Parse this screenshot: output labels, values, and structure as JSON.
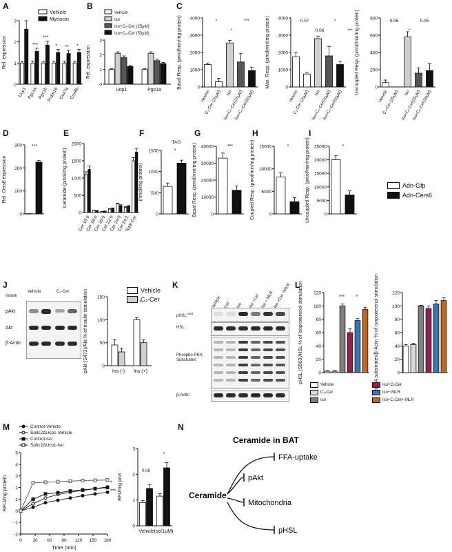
{
  "panels": {
    "A": {
      "label": "A"
    },
    "B": {
      "label": "B"
    },
    "C": {
      "label": "C"
    },
    "D": {
      "label": "D"
    },
    "E": {
      "label": "E"
    },
    "F": {
      "label": "F"
    },
    "G": {
      "label": "G"
    },
    "H": {
      "label": "H"
    },
    "I": {
      "label": "I"
    },
    "J": {
      "label": "J"
    },
    "K": {
      "label": "K"
    },
    "L": {
      "label": "L"
    },
    "M": {
      "label": "M"
    },
    "N": {
      "label": "N"
    }
  },
  "legend_GI": {
    "item1": "Adn-Gfp",
    "item2": "Adn-Cers6"
  },
  "panel_F_tag": "TAG",
  "panel_J_blot": {
    "insulin": "Insulin",
    "vehicle": "Vehicle",
    "c2cer": "C₂-Cer",
    "pakt": "pAkt",
    "akt": "Akt",
    "actin": "β-Actin",
    "minus": "-",
    "plus": "+"
  },
  "panel_K_blot": {
    "lanes": [
      "Vehicle",
      "Cer",
      "Iso",
      "Iso +Cer",
      "Iso + MLR",
      "Iso +Cer +MLR"
    ],
    "phsl": "pHSL",
    "phsl_sup": "S563",
    "hsl": "HSL",
    "pka1": "Phospho-PKA",
    "pka2": "Substrates",
    "actin": "β-Actin"
  },
  "panel_L_legend": {
    "vehicle": "Vehicle",
    "c2cer": "C₂-Cer",
    "iso": "Iso",
    "iso_c2cer": "Iso+C₂Cer",
    "iso_mlr": "Iso+ MLR",
    "iso_c2cer_mlr": "Iso+C₂Cer+ MLR"
  },
  "panel_N": {
    "title": "Ceramide in BAT",
    "center": "Ceramide",
    "targets": [
      "FFA-uptake",
      "pAkt",
      "Mitochondria",
      "pHSL"
    ]
  },
  "colors": {
    "black": "#111111",
    "grey": "#9a9a9a",
    "lightgrey": "#cfcfcf",
    "darkgrey": "#555555",
    "vehicle_L": "#ffffff",
    "c2cer_L": "#d8d8d8",
    "iso_L": "#7f7f7f",
    "iso_c2cer_L": "#8b2252",
    "iso_mlr_L": "#3d74a8",
    "iso_c2cer_mlr_L": "#c0661e"
  },
  "chart_data": [
    {
      "id": "A",
      "type": "bar",
      "ylabel": "Rel. expression",
      "ylim": [
        0,
        3
      ],
      "yticks": [
        "0",
        "1",
        "2",
        "3"
      ],
      "categories": [
        "Ucp1",
        "Pgc1a",
        "Pgc1b",
        "Prdm16",
        "Cox7a",
        "Cox8b"
      ],
      "series": [
        {
          "name": "Vehicle",
          "values": [
            1,
            1,
            1,
            1,
            1,
            1
          ],
          "err": [
            0.08,
            0.08,
            0.08,
            0.08,
            0.08,
            0.08
          ]
        },
        {
          "name": "Myriocin",
          "values": [
            2.6,
            1.55,
            1.85,
            1.5,
            1.45,
            1.5
          ],
          "err": [
            0.4,
            0.15,
            0.18,
            0.15,
            0.15,
            0.15
          ]
        }
      ],
      "stars": [
        "",
        "***",
        "***",
        "*",
        "**",
        "*"
      ]
    },
    {
      "id": "B",
      "type": "bar",
      "ylabel": "Rel. expression",
      "ylim": [
        0,
        3
      ],
      "yticks": [
        "0",
        "1",
        "2",
        "3"
      ],
      "categories": [
        "Ucp1",
        "Pgc1a"
      ],
      "series": [
        {
          "name": "Vehicle",
          "values": [
            1,
            1
          ],
          "err": [
            0.05,
            0.05
          ]
        },
        {
          "name": "Iso",
          "values": [
            2.1,
            2.1
          ],
          "err": [
            0.1,
            0.1
          ]
        },
        {
          "name": "Iso+C₂-Cer (25μM)",
          "values": [
            1.8,
            1.6
          ],
          "err": [
            0.12,
            0.1
          ]
        },
        {
          "name": "Iso+C₂-Cer (50μM)",
          "values": [
            1.2,
            1.4
          ],
          "err": [
            0.08,
            0.08
          ]
        }
      ]
    },
    {
      "id": "C1",
      "type": "bar",
      "ylabel": "Basal Resp. (pmol/min/mg protein)",
      "ylim": [
        0,
        4000
      ],
      "yticks": [
        "0",
        "1000",
        "2000",
        "3000",
        "4000"
      ],
      "categories": [
        "Vehicle",
        "C₂-Cer (25μM)",
        "Iso",
        "Iso+C₂-Cer(25μM)",
        "Iso+C₂-Cer(50μM)"
      ],
      "values": [
        1300,
        300,
        2550,
        1450,
        950
      ],
      "err": [
        80,
        200,
        150,
        500,
        200
      ],
      "stars": [
        "*",
        "*",
        "***"
      ]
    },
    {
      "id": "C2",
      "type": "bar",
      "ylabel": "Max. Resp. (pmol/min/mg protein)",
      "ylim": [
        0,
        4000
      ],
      "yticks": [
        "0",
        "1000",
        "2000",
        "3000",
        "4000"
      ],
      "categories": [
        "Vehicle",
        "C₂-Cer (25μM)",
        "Iso",
        "Iso+C₂-Cer(25μM)",
        "Iso+C₂-Cer(50μM)"
      ],
      "values": [
        1750,
        750,
        2800,
        1800,
        1300
      ],
      "err": [
        250,
        100,
        150,
        550,
        200
      ],
      "labels": [
        "0.07",
        "0.06",
        "*",
        "***"
      ]
    },
    {
      "id": "C3",
      "type": "bar",
      "ylabel": "Uncoupled Resp. (pmol/min/mg protein)",
      "ylim": [
        0,
        800
      ],
      "yticks": [
        "0",
        "200",
        "400",
        "600",
        "800"
      ],
      "categories": [
        "Vehicle",
        "C₂-Cer (25μM)",
        "Iso",
        "Iso+C₂-Cer(25μM)",
        "Iso+C₂-Cer(50μM)"
      ],
      "values": [
        50,
        0,
        580,
        160,
        190
      ],
      "err": [
        30,
        0,
        60,
        60,
        80
      ],
      "labels": [
        "0.06",
        "*",
        "0.06"
      ]
    },
    {
      "id": "D",
      "type": "bar",
      "ylabel": "Rel. Cers6 expression",
      "ylim": [
        0,
        300
      ],
      "yticks": [
        "0",
        "100",
        "200",
        "300"
      ],
      "values": [
        1,
        225
      ],
      "err": [
        0.1,
        8
      ],
      "stars": [
        "***"
      ]
    },
    {
      "id": "E",
      "type": "bar",
      "ylabel": "Ceramide (pmol/mg protein)",
      "ylim": [
        0,
        2000
      ],
      "yticks": [
        "0",
        "500",
        "1000",
        "1500",
        "2000"
      ],
      "categories": [
        "Cer 16:0",
        "Cer 18:0",
        "Cer 20:0",
        "Cer 22:0",
        "Cer 24:0",
        "Cer 24:1",
        "Total Cer"
      ],
      "series": [
        {
          "name": "Adn-Gfp",
          "values": [
            1100,
            60,
            30,
            100,
            250,
            150,
            1500
          ],
          "err": [
            80,
            10,
            5,
            15,
            20,
            20,
            90
          ]
        },
        {
          "name": "Adn-Cers6",
          "values": [
            1250,
            50,
            40,
            120,
            200,
            180,
            1750
          ],
          "err": [
            100,
            10,
            5,
            15,
            25,
            20,
            110
          ]
        }
      ]
    },
    {
      "id": "F",
      "type": "bar",
      "ylabel": "(nmol/mg protein)",
      "ylim": [
        0,
        1500
      ],
      "yticks": [
        "0",
        "500",
        "1000",
        "1500"
      ],
      "values": [
        650,
        1200
      ],
      "err": [
        80,
        70
      ],
      "stars": [
        "*"
      ]
    },
    {
      "id": "G",
      "type": "bar",
      "ylabel": "Basal Resp. (pmol/min/mg protein)",
      "ylim": [
        0,
        40000
      ],
      "yticks": [
        "0",
        "10000",
        "20000",
        "30000",
        "40000"
      ],
      "values": [
        33000,
        14000
      ],
      "err": [
        3000,
        2500
      ],
      "stars": [
        "***"
      ]
    },
    {
      "id": "H",
      "type": "bar",
      "ylabel": "Coupled Resp. (pmol/min/mg protein)",
      "ylim": [
        0,
        15000
      ],
      "yticks": [
        "0",
        "5000",
        "10000",
        "15000"
      ],
      "values": [
        8200,
        2700
      ],
      "err": [
        900,
        900
      ],
      "stars": [
        "*"
      ]
    },
    {
      "id": "I",
      "type": "bar",
      "ylabel": "Uncoupled Resp. (pmol/min/mg protein)",
      "ylim": [
        0,
        25000
      ],
      "yticks": [
        "0",
        "5000",
        "10000",
        "15000",
        "20000",
        "25000"
      ],
      "values": [
        20000,
        7000
      ],
      "err": [
        1500,
        1500
      ],
      "stars": [
        "*"
      ]
    },
    {
      "id": "J",
      "type": "bar",
      "ylabel": "pAkt (S473)/Akt % of insulin stimulation",
      "ylim": [
        0,
        150
      ],
      "yticks": [
        "0",
        "50",
        "100",
        "150"
      ],
      "categories": [
        "Ins (-)",
        "Ins (+)"
      ],
      "series": [
        {
          "name": "Vehicle",
          "values": [
            45,
            100
          ],
          "err": [
            12,
            5
          ]
        },
        {
          "name": "C₂-Cer",
          "values": [
            30,
            50
          ],
          "err": [
            8,
            6
          ]
        }
      ],
      "stars": [
        "*"
      ]
    },
    {
      "id": "L1",
      "type": "bar",
      "ylabel": "pHSL (S563)/HSL % of Isoproterenol stimulation",
      "ylim": [
        0,
        120
      ],
      "yticks": [
        "0",
        "20",
        "40",
        "60",
        "80",
        "100",
        "120"
      ],
      "values": [
        2,
        2,
        100,
        60,
        78,
        95
      ],
      "err": [
        1,
        1,
        3,
        6,
        3,
        3
      ],
      "stars": [
        "***",
        "*"
      ]
    },
    {
      "id": "L2",
      "type": "bar",
      "ylabel": "pPKA substrates/β-Actin % of Isoproterenol stimulation",
      "ylim": [
        0,
        120
      ],
      "yticks": [
        "0",
        "20",
        "40",
        "60",
        "80",
        "100",
        "120"
      ],
      "values": [
        40,
        42,
        100,
        96,
        103,
        108
      ],
      "err": [
        2,
        2,
        1,
        4,
        5,
        4
      ]
    },
    {
      "id": "M1",
      "type": "line",
      "ylabel": "RFU/mg protein",
      "xlabel": "Time (min)",
      "xticks": [
        "0",
        "30",
        "60",
        "90",
        "120",
        "150",
        "180"
      ],
      "yticks": [
        "-2",
        "-1",
        "0",
        "1",
        "2",
        "3",
        "4",
        "5"
      ],
      "series": [
        {
          "name": "Control-Vehicle",
          "values": [
            0,
            0.3,
            0.7,
            0.9,
            1.1,
            1.3,
            1.45,
            1.6
          ]
        },
        {
          "name": "Sptlc2ΔUcp1-Vehicle",
          "values": [
            0,
            0.6,
            1.1,
            1.4,
            1.6,
            1.75,
            1.9,
            2.05
          ]
        },
        {
          "name": "Control-Iso",
          "values": [
            0,
            1.0,
            1.45,
            1.55,
            1.7,
            1.8,
            1.9,
            2.0
          ]
        },
        {
          "name": "Sptlc2ΔUcp1-Iso",
          "values": [
            0,
            2.4,
            2.45,
            2.5,
            2.55,
            2.6,
            2.62,
            2.65
          ]
        }
      ],
      "stars": [
        "*",
        "***"
      ]
    },
    {
      "id": "M2",
      "type": "bar",
      "ylabel": "RFU/mg prot",
      "ylim": [
        0,
        3
      ],
      "yticks": [
        "0",
        "1",
        "2",
        "3"
      ],
      "categories": [
        "Vehicle",
        "Iso(1μM)"
      ],
      "series": [
        {
          "name": "Control",
          "values": [
            0.9,
            1.15
          ],
          "err": [
            0.08,
            0.1
          ]
        },
        {
          "name": "Sptlc2ΔUcp1",
          "values": [
            1.45,
            2.25
          ],
          "err": [
            0.15,
            0.2
          ]
        }
      ],
      "labels": [
        "0.08",
        "*"
      ]
    }
  ]
}
